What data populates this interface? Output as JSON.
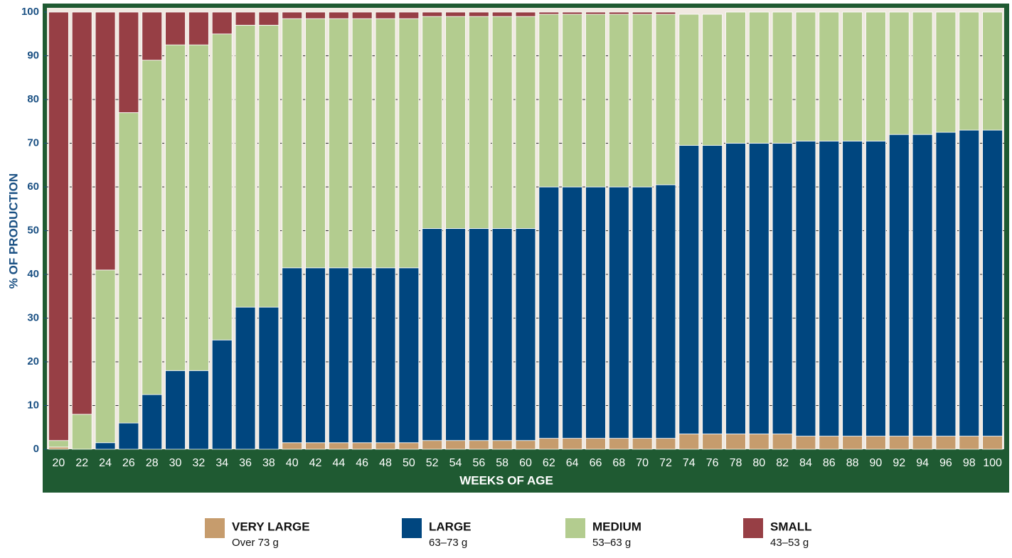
{
  "chart_data": {
    "type": "stacked_bar",
    "xlabel": "WEEKS OF AGE",
    "ylabel": "% OF PRODUCTION",
    "categories": [
      20,
      22,
      24,
      26,
      28,
      30,
      32,
      34,
      36,
      38,
      40,
      42,
      44,
      46,
      48,
      50,
      52,
      54,
      56,
      58,
      60,
      62,
      64,
      66,
      68,
      70,
      72,
      74,
      76,
      78,
      80,
      82,
      84,
      86,
      88,
      90,
      92,
      94,
      96,
      98,
      100
    ],
    "ylim": [
      0,
      100
    ],
    "yticks": [
      0,
      10,
      20,
      30,
      40,
      50,
      60,
      70,
      80,
      90,
      100
    ],
    "grid": true,
    "series": [
      {
        "name": "VERY LARGE",
        "range": "Over 73 g",
        "color": "#c69c6d",
        "values": [
          0.5,
          0,
          0,
          0,
          0,
          0,
          0,
          0,
          0,
          0,
          1.5,
          1.5,
          1.5,
          1.5,
          1.5,
          1.5,
          2,
          2,
          2,
          2,
          2,
          2.5,
          2.5,
          2.5,
          2.5,
          2.5,
          2.5,
          3.5,
          3.5,
          3.5,
          3.5,
          3.5,
          3,
          3,
          3,
          3,
          3,
          3,
          3,
          3,
          3
        ]
      },
      {
        "name": "LARGE",
        "range": "63–73 g",
        "color": "#00467f",
        "values": [
          0,
          0,
          1.5,
          6,
          12.5,
          18,
          18,
          25,
          32.5,
          32.5,
          40,
          40,
          40,
          40,
          40,
          40,
          48.5,
          48.5,
          48.5,
          48.5,
          48.5,
          57.5,
          57.5,
          57.5,
          57.5,
          57.5,
          58,
          66,
          66,
          66.5,
          66.5,
          66.5,
          67.5,
          67.5,
          67.5,
          67.5,
          69,
          69,
          69.5,
          70,
          70
        ]
      },
      {
        "name": "MEDIUM",
        "range": "53–63 g",
        "color": "#b3cc8f",
        "values": [
          1.5,
          8,
          39.5,
          71,
          76.5,
          74.5,
          74.5,
          70,
          64.5,
          64.5,
          57,
          57,
          57,
          57,
          57,
          57,
          48.5,
          48.5,
          48.5,
          48.5,
          48.5,
          39.5,
          39.5,
          39.5,
          39.5,
          39.5,
          39,
          30,
          30,
          30,
          30,
          30,
          29.5,
          29.5,
          29.5,
          29.5,
          28,
          28,
          27.5,
          27,
          27
        ]
      },
      {
        "name": "SMALL",
        "range": "43–53 g",
        "color": "#973f45",
        "values": [
          98,
          92,
          59,
          23,
          11,
          7.5,
          7.5,
          5,
          3,
          3,
          1.5,
          1.5,
          1.5,
          1.5,
          1.5,
          1.5,
          1,
          1,
          1,
          1,
          1,
          0.5,
          0.5,
          0.5,
          0.5,
          0.5,
          0.5,
          0,
          0,
          0,
          0,
          0,
          0,
          0,
          0,
          0,
          0,
          0,
          0,
          0,
          0
        ]
      }
    ]
  }
}
